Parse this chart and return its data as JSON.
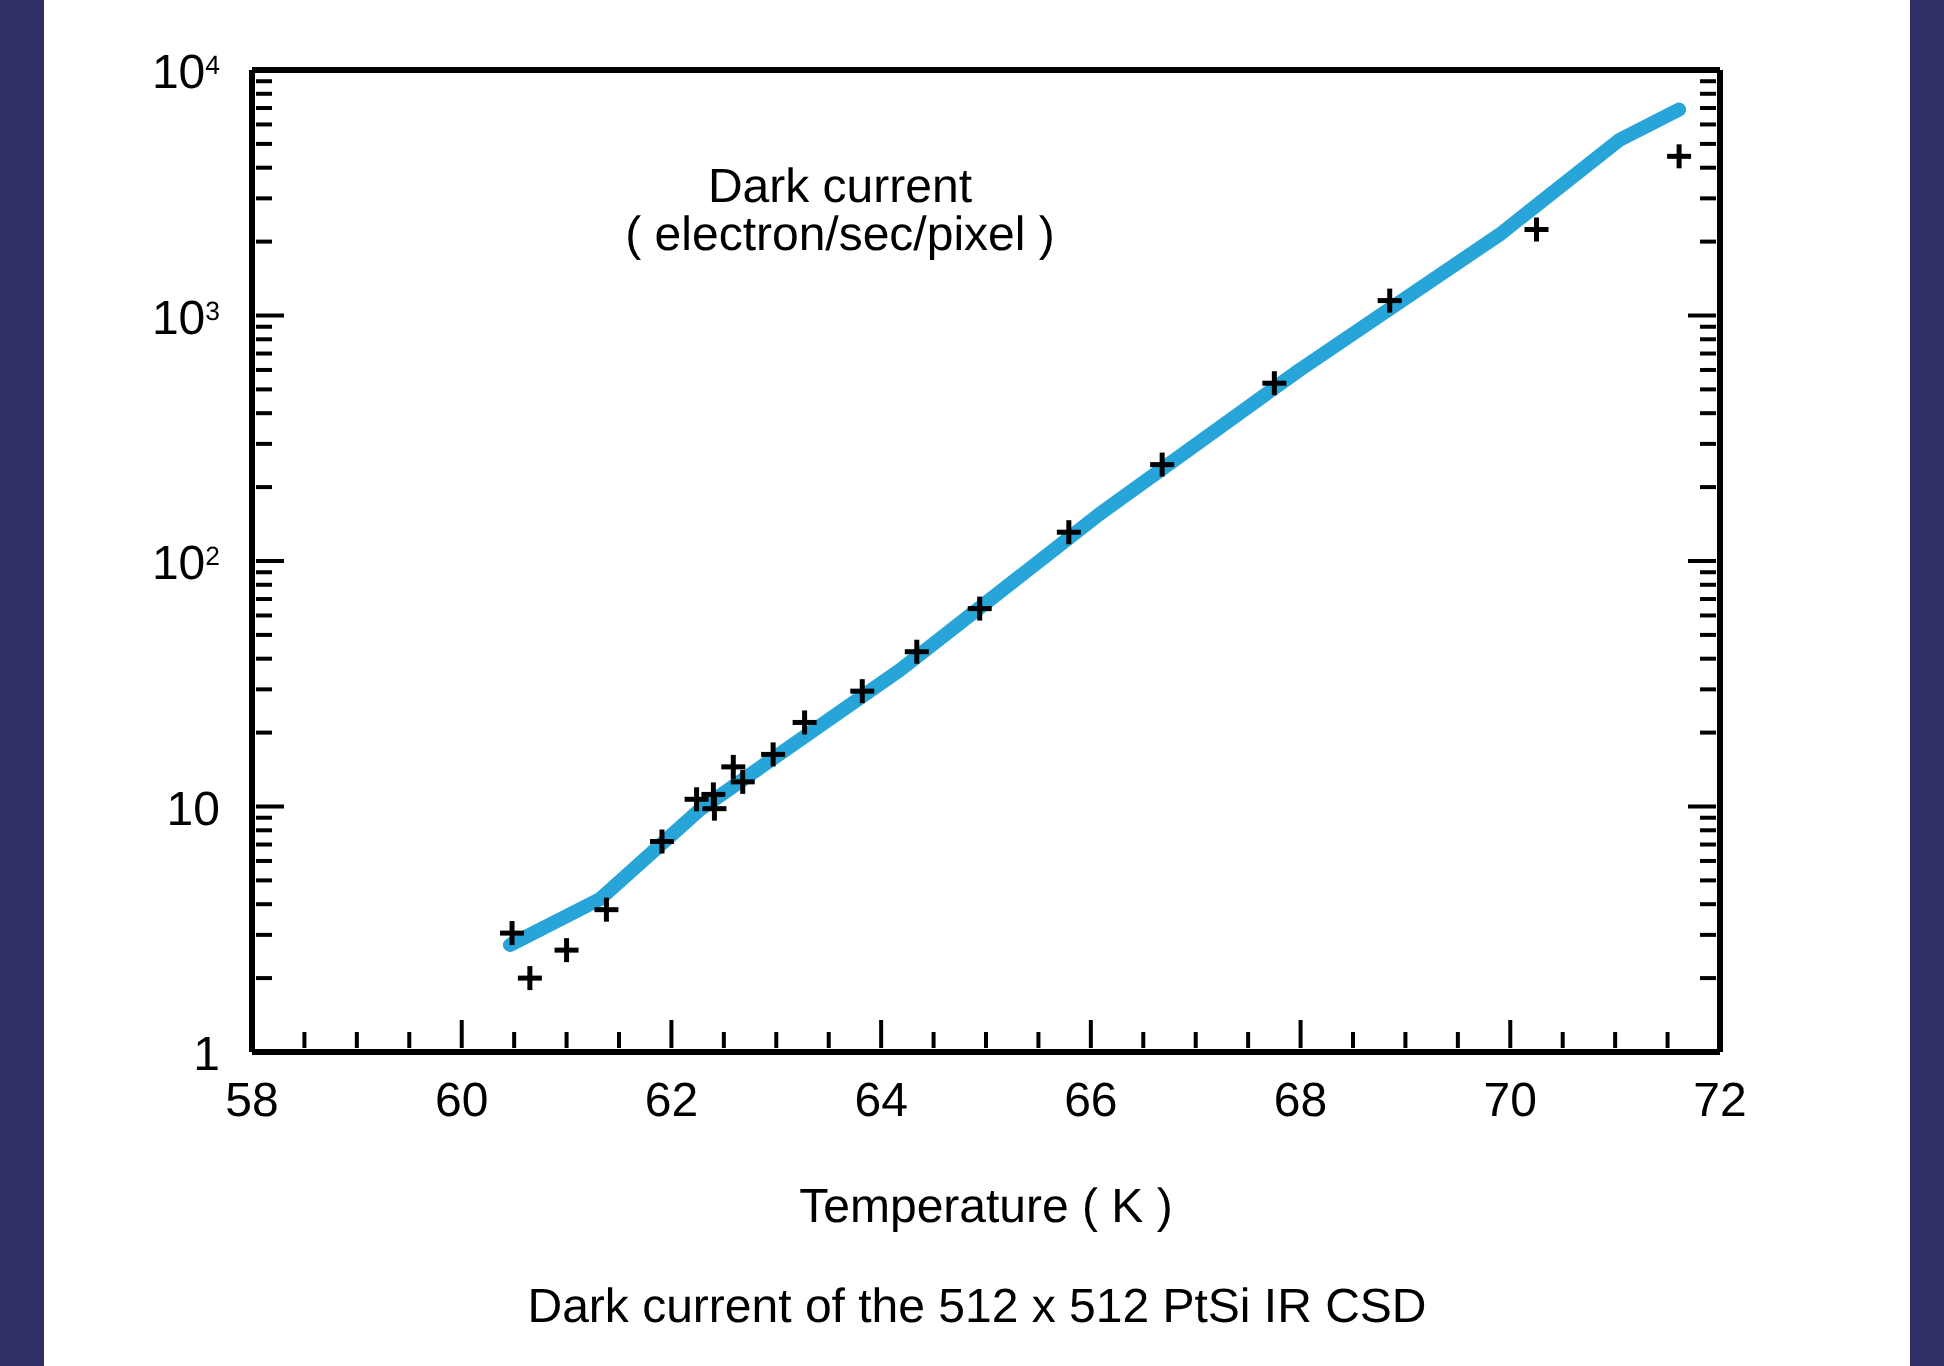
{
  "chart_data": {
    "type": "scatter",
    "xlabel": "Temperature ( K )",
    "annotations": [
      "Dark current\n( electron/sec/pixel )",
      "Dark current of the 512 x 512 PtSi IR CSD"
    ],
    "log": "y",
    "marker": "cross",
    "xlim": [
      58,
      72
    ],
    "ylim": [
      1,
      10000
    ],
    "xticks": [
      58,
      {
        "value": 58.5,
        "label": null
      },
      {
        "value": 59,
        "label": null
      },
      {
        "value": 59.5,
        "label": null
      },
      60,
      {
        "value": 60.5,
        "label": null
      },
      {
        "value": 61,
        "label": null
      },
      {
        "value": 61.5,
        "label": null
      },
      62,
      {
        "value": 62.5,
        "label": null
      },
      {
        "value": 63,
        "label": null
      },
      {
        "value": 63.5,
        "label": null
      },
      64,
      {
        "value": 64.5,
        "label": null
      },
      {
        "value": 65,
        "label": null
      },
      {
        "value": 65.5,
        "label": null
      },
      66,
      {
        "value": 66.5,
        "label": null
      },
      {
        "value": 67,
        "label": null
      },
      {
        "value": 67.5,
        "label": null
      },
      68,
      {
        "value": 68.5,
        "label": null
      },
      {
        "value": 69,
        "label": null
      },
      {
        "value": 69.5,
        "label": null
      },
      70,
      {
        "value": 70.5,
        "label": null
      },
      {
        "value": 71,
        "label": null
      },
      {
        "value": 71.5,
        "label": null
      },
      72
    ],
    "yticks": [
      1,
      {
        "value": 2,
        "label": null
      },
      {
        "value": 3,
        "label": null
      },
      {
        "value": 4,
        "label": null
      },
      {
        "value": 5,
        "label": null
      },
      {
        "value": 6,
        "label": null
      },
      {
        "value": 7,
        "label": null
      },
      {
        "value": 8,
        "label": null
      },
      {
        "value": 9,
        "label": null
      },
      10,
      {
        "value": 20,
        "label": null
      },
      {
        "value": 30,
        "label": null
      },
      {
        "value": 40,
        "label": null
      },
      {
        "value": 50,
        "label": null
      },
      {
        "value": 60,
        "label": null
      },
      {
        "value": 70,
        "label": null
      },
      {
        "value": 80,
        "label": null
      },
      {
        "value": 90,
        "label": null
      },
      {
        "value": 100,
        "label": "10$^{2}$"
      },
      {
        "value": 200,
        "label": null
      },
      {
        "value": 300,
        "label": null
      },
      {
        "value": 400,
        "label": null
      },
      {
        "value": 500,
        "label": null
      },
      {
        "value": 600,
        "label": null
      },
      {
        "value": 700,
        "label": null
      },
      {
        "value": 800,
        "label": null
      },
      {
        "value": 900,
        "label": null
      },
      {
        "value": 1000,
        "label": "10$^{3}$"
      },
      {
        "value": 2000,
        "label": null
      },
      {
        "value": 3000,
        "label": null
      },
      {
        "value": 4000,
        "label": null
      },
      {
        "value": 5000,
        "label": null
      },
      {
        "value": 6000,
        "label": null
      },
      {
        "value": 7000,
        "label": null
      },
      {
        "value": 8000,
        "label": null
      },
      {
        "value": 9000,
        "label": null
      },
      {
        "value": 10000,
        "label": "10$^{4}$"
      }
    ],
    "series": [
      {
        "type": "line",
        "marker": "none",
        "color": "#27a4d8",
        "x": [
          60.46,
          61.32,
          62.27,
          64.18,
          66.08,
          67.99,
          69.9,
          71.04,
          71.61
        ],
        "values": [
          2.73,
          4.2,
          9.7,
          36,
          155,
          600,
          2140,
          5190,
          6900
        ]
      },
      {
        "color": "#000000",
        "x": [
          60.48,
          60.65,
          61.0,
          61.38,
          61.91,
          62.24,
          62.41,
          62.4,
          62.59,
          62.68,
          62.97,
          63.27,
          63.82,
          64.34,
          64.94,
          65.79,
          66.68,
          67.75,
          68.85,
          70.25,
          71.61
        ],
        "values": [
          3.05,
          2.0,
          2.6,
          3.8,
          7.2,
          10.7,
          9.8,
          11.2,
          14.5,
          12.6,
          16.3,
          22,
          29.5,
          42.7,
          64,
          131,
          247,
          530,
          1150,
          2240,
          4450
        ]
      }
    ]
  }
}
